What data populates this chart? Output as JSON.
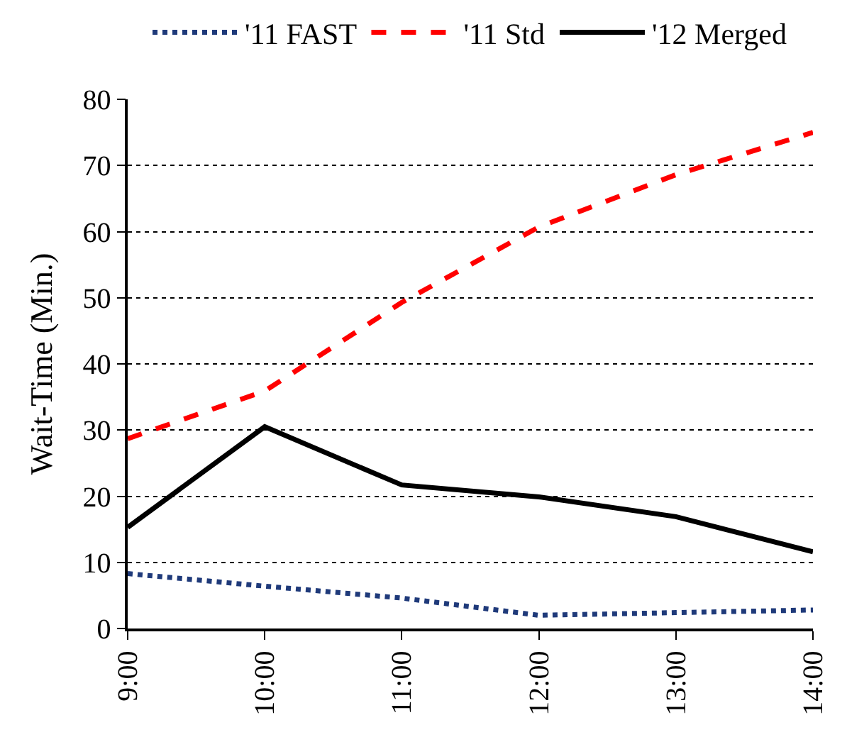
{
  "chart_data": {
    "type": "line",
    "ylabel": "Wait-Time (Min.)",
    "x": [
      9,
      10,
      11,
      12,
      13,
      14
    ],
    "xlim": [
      9,
      14
    ],
    "xticks": [
      {
        "value": 9,
        "label": "9:00"
      },
      {
        "value": 10,
        "label": "10:00"
      },
      {
        "value": 11,
        "label": "11:00"
      },
      {
        "value": 12,
        "label": "12:00"
      },
      {
        "value": 13,
        "label": "13:00"
      },
      {
        "value": 14,
        "label": "14:00"
      }
    ],
    "ylim": [
      0,
      80
    ],
    "yticks": [
      0,
      10,
      20,
      30,
      40,
      50,
      60,
      70,
      80
    ],
    "grid": "y",
    "legend": "top",
    "marker": "none",
    "series": [
      {
        "name": "'11 FAST",
        "color": "#1f3a7a",
        "line_style": "dotted",
        "values": [
          8.3,
          6.4,
          4.6,
          2.0,
          2.4,
          2.8
        ]
      },
      {
        "name": "'11 Std",
        "color": "#ff0000",
        "line_style": "dashed",
        "values": [
          28.7,
          35.9,
          49.3,
          60.7,
          68.6,
          75.0
        ]
      },
      {
        "name": "'12 Merged",
        "color": "#000000",
        "line_style": "solid",
        "values": [
          15.3,
          30.5,
          21.7,
          19.9,
          16.9,
          11.6
        ]
      }
    ]
  }
}
